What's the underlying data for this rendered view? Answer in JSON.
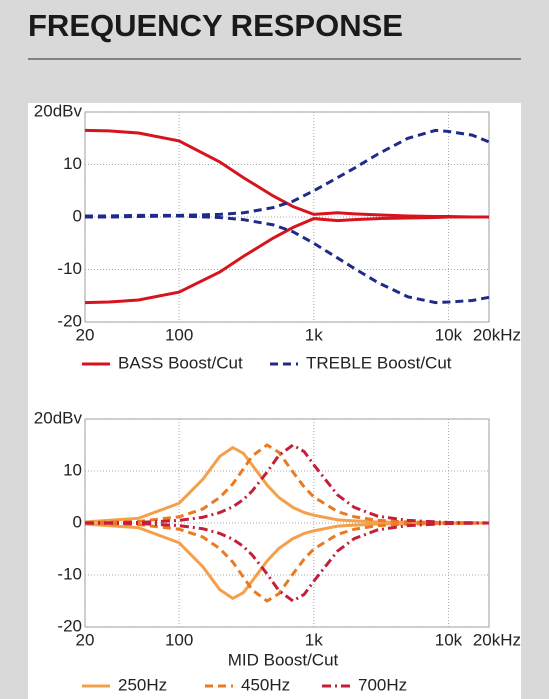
{
  "header": {
    "title": "FREQUENCY RESPONSE"
  },
  "chart_data": [
    {
      "type": "line",
      "xscale": "log",
      "grid": true,
      "x": [
        20,
        30,
        50,
        100,
        200,
        300,
        500,
        700,
        1000,
        1500,
        2000,
        3000,
        5000,
        8000,
        10000,
        15000,
        20000
      ],
      "xlim": [
        20,
        20000
      ],
      "xticks": [
        20,
        100,
        {
          "value": 1000,
          "label": "1k"
        },
        {
          "value": 10000,
          "label": "10k"
        },
        {
          "value": 20000,
          "label": "20kHz"
        }
      ],
      "ylim": [
        -20,
        20
      ],
      "yticks": [
        -20,
        -10,
        0,
        10,
        {
          "value": 20,
          "label": "20dBv"
        }
      ],
      "series": [
        {
          "name": "BASS Boost/Cut",
          "color": "#d7141e",
          "dash": "solid",
          "values": [
            [
              16.5,
              16.4,
              16,
              14.5,
              10.5,
              7.5,
              4,
              2,
              0.5,
              0.8,
              0.6,
              0.4,
              0.2,
              0.1,
              0.1,
              0,
              0
            ],
            [
              -16.3,
              -16.2,
              -15.8,
              -14.3,
              -10.5,
              -7.5,
              -4,
              -2,
              -0.3,
              -0.7,
              -0.5,
              -0.3,
              -0.2,
              -0.1,
              0,
              0,
              0
            ]
          ]
        },
        {
          "name": "TREBLE Boost/Cut",
          "color": "#1f2a8a",
          "dash": "dashed",
          "values": [
            [
              0.2,
              0.2,
              0.3,
              0.3,
              0.5,
              0.8,
              1.8,
              3,
              5,
              7.5,
              9.3,
              12,
              15,
              16.5,
              16.3,
              15.6,
              14.3
            ],
            [
              0,
              0,
              0.1,
              0.2,
              -0.1,
              -0.5,
              -1.5,
              -2.8,
              -5,
              -7.8,
              -9.8,
              -12.5,
              -15.2,
              -16.3,
              -16.2,
              -15.9,
              -15.3
            ]
          ]
        }
      ]
    },
    {
      "type": "line",
      "xscale": "log",
      "grid": true,
      "xlabel": "MID Boost/Cut",
      "x": [
        20,
        50,
        100,
        150,
        200,
        250,
        300,
        350,
        450,
        550,
        700,
        850,
        1000,
        1500,
        2000,
        3000,
        5000,
        10000,
        20000
      ],
      "xlim": [
        20,
        20000
      ],
      "xticks": [
        20,
        100,
        {
          "value": 1000,
          "label": "1k"
        },
        {
          "value": 10000,
          "label": "10k"
        },
        {
          "value": 20000,
          "label": "20kHz"
        }
      ],
      "ylim": [
        -20,
        20
      ],
      "yticks": [
        -20,
        -10,
        0,
        10,
        {
          "value": 20,
          "label": "20dBv"
        }
      ],
      "series": [
        {
          "name": "250Hz",
          "color": "#f4a04a",
          "dash": "solid",
          "values": [
            [
              0.2,
              0.9,
              3.8,
              8.4,
              12.8,
              14.5,
              13.4,
              11.1,
              7.3,
              4.9,
              3.0,
              2.0,
              1.5,
              0.6,
              0.4,
              0.2,
              0.1,
              0,
              0
            ],
            [
              -0.2,
              -0.9,
              -3.8,
              -8.4,
              -12.8,
              -14.5,
              -13.4,
              -11.1,
              -7.3,
              -4.9,
              -3.0,
              -2.0,
              -1.5,
              -0.6,
              -0.4,
              -0.2,
              -0.1,
              0,
              0
            ]
          ]
        },
        {
          "name": "450Hz",
          "color": "#ea7a22",
          "dash": "dashed",
          "values": [
            [
              0.1,
              0.3,
              1.2,
              2.7,
              4.9,
              7.5,
              10.4,
              12.9,
              15,
              13.6,
              9.8,
              6.9,
              5.0,
              2.2,
              1.2,
              0.5,
              0.2,
              0.1,
              0
            ],
            [
              -0.1,
              -0.3,
              -1.2,
              -2.7,
              -4.9,
              -7.5,
              -10.4,
              -12.9,
              -15,
              -13.6,
              -9.8,
              -6.9,
              -5.0,
              -2.2,
              -1.2,
              -0.5,
              -0.2,
              -0.1,
              0
            ]
          ]
        },
        {
          "name": "700Hz",
          "color": "#c41f3a",
          "dash": "dashdot",
          "values": [
            [
              0,
              0.1,
              0.5,
              1.1,
              2.0,
              3.1,
              4.5,
              6.2,
              9.8,
              13.0,
              15,
              13.7,
              11.2,
              5.4,
              3.0,
              1.3,
              0.5,
              0.1,
              0
            ],
            [
              0,
              -0.1,
              -0.5,
              -1.1,
              -2.0,
              -3.1,
              -4.5,
              -6.2,
              -9.8,
              -13.0,
              -15,
              -13.7,
              -11.2,
              -5.4,
              -3.0,
              -1.3,
              -0.5,
              -0.1,
              0
            ]
          ]
        }
      ]
    }
  ]
}
